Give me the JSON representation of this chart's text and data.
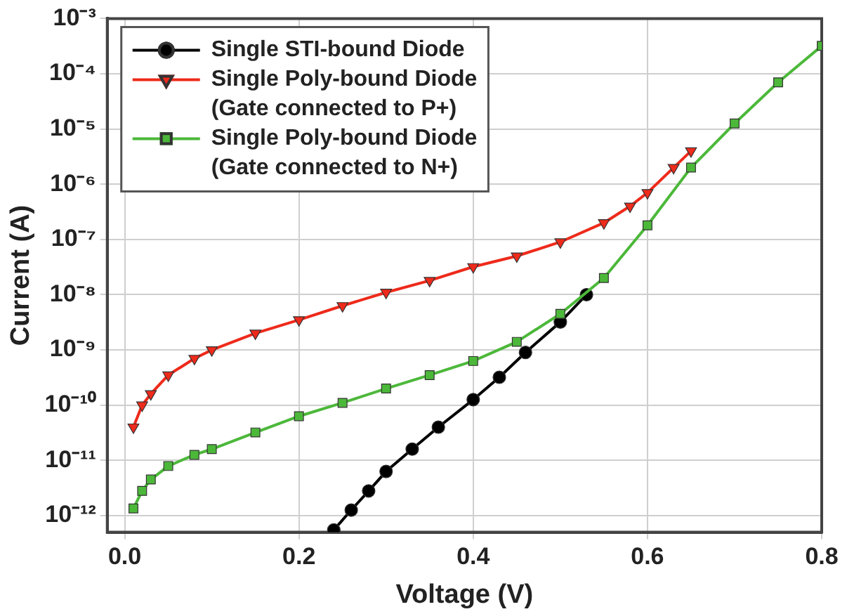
{
  "chart_data": {
    "type": "line",
    "xlabel": "Voltage (V)",
    "ylabel": "Current (A)",
    "log": "y",
    "xlim": [
      -0.02,
      0.8
    ],
    "xticks": [
      {
        "value": 0,
        "label": "0.0"
      },
      0.2,
      0.4,
      0.6,
      0.8
    ],
    "ylim": [
      5e-13,
      0.001
    ],
    "yticks": [
      {
        "value": 1e-12,
        "label": "10⁻¹²"
      },
      {
        "value": 1e-11,
        "label": "10⁻¹¹"
      },
      {
        "value": 1e-10,
        "label": "10⁻¹⁰"
      },
      {
        "value": 1e-09,
        "label": "10⁻⁹"
      },
      {
        "value": 1e-08,
        "label": "10⁻⁸"
      },
      {
        "value": 1e-07,
        "label": "10⁻⁷"
      },
      {
        "value": 1e-06,
        "label": "10⁻⁶"
      },
      {
        "value": 1e-05,
        "label": "10⁻⁵"
      },
      {
        "value": 0.0001,
        "label": "10⁻⁴"
      },
      {
        "value": 0.001,
        "label": "10⁻³"
      }
    ],
    "grid": true,
    "legend": "top left",
    "line_style": "solid",
    "series": [
      {
        "name": "Single STI-bound Diode",
        "color": "#000000",
        "marker": "circle",
        "x": [
          0.24,
          0.26,
          0.28,
          0.3,
          0.33,
          0.36,
          0.4,
          0.43,
          0.46,
          0.5,
          0.53
        ],
        "values": [
          5.5e-13,
          1.26e-12,
          2.8e-12,
          6.3e-12,
          1.6e-11,
          4e-11,
          1.26e-10,
          3.2e-10,
          9e-10,
          3.2e-09,
          1e-08
        ]
      },
      {
        "name": "Single Poly-bound Diode\n(Gate connected to P+)",
        "color": "#ee2a1b",
        "marker": "triangle",
        "x": [
          0.01,
          0.02,
          0.03,
          0.05,
          0.08,
          0.1,
          0.15,
          0.2,
          0.25,
          0.3,
          0.35,
          0.4,
          0.45,
          0.5,
          0.55,
          0.58,
          0.6,
          0.63,
          0.65
        ],
        "values": [
          4e-11,
          1e-10,
          1.6e-10,
          3.5e-10,
          7e-10,
          1e-09,
          2e-09,
          3.5e-09,
          6.3e-09,
          1.1e-08,
          1.8e-08,
          3.2e-08,
          5e-08,
          9e-08,
          2e-07,
          4e-07,
          7e-07,
          2e-06,
          4e-06
        ]
      },
      {
        "name": "Single Poly-bound Diode\n(Gate connected to N+)",
        "color": "#4cb83a",
        "marker": "square",
        "x": [
          0.01,
          0.02,
          0.03,
          0.05,
          0.08,
          0.1,
          0.15,
          0.2,
          0.25,
          0.3,
          0.35,
          0.4,
          0.45,
          0.5,
          0.55,
          0.6,
          0.65,
          0.7,
          0.75,
          0.8
        ],
        "values": [
          1.35e-12,
          2.8e-12,
          4.5e-12,
          7.9e-12,
          1.26e-11,
          1.6e-11,
          3.2e-11,
          6.3e-11,
          1.1e-10,
          2e-10,
          3.5e-10,
          6.3e-10,
          1.4e-09,
          4.5e-09,
          2e-08,
          1.8e-07,
          2e-06,
          1.26e-05,
          7e-05,
          0.00032
        ]
      }
    ]
  }
}
